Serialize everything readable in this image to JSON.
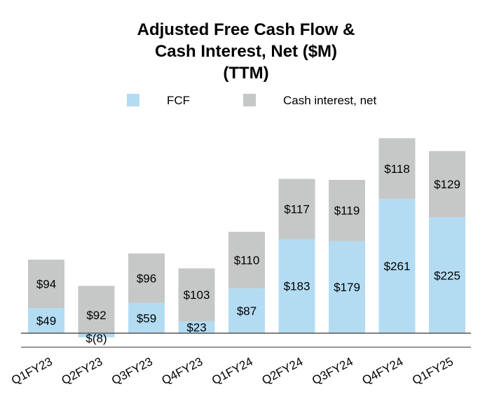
{
  "chart_data": {
    "type": "bar",
    "stacked": true,
    "title_lines": [
      "Adjusted Free Cash Flow &",
      "Cash Interest, Net ($M)",
      "(TTM)"
    ],
    "categories": [
      "Q1FY23",
      "Q2FY23",
      "Q3FY23",
      "Q4FY23",
      "Q1FY24",
      "Q2FY24",
      "Q3FY24",
      "Q4FY24",
      "Q1FY25"
    ],
    "series": [
      {
        "name": "FCF",
        "color": "#b3dcf3",
        "values": [
          49,
          -8,
          59,
          23,
          87,
          183,
          179,
          261,
          225
        ],
        "labels": [
          "$49",
          "$(8)",
          "$59",
          "$23",
          "$87",
          "$183",
          "$179",
          "$261",
          "$225"
        ]
      },
      {
        "name": "Cash interest, net",
        "color": "#c6c8c7",
        "values": [
          94,
          92,
          96,
          103,
          110,
          117,
          119,
          118,
          129
        ],
        "labels": [
          "$94",
          "$92",
          "$96",
          "$103",
          "$110",
          "$117",
          "$119",
          "$118",
          "$129"
        ]
      }
    ],
    "legend_position": "top-center",
    "grid": false
  }
}
